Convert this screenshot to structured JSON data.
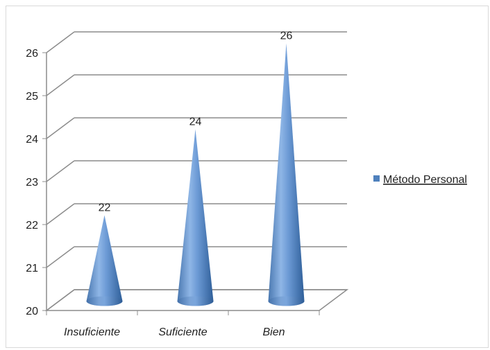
{
  "chart_data": {
    "type": "bar",
    "style": "3d-cone",
    "categories": [
      "Insuficiente",
      "Suficiente",
      "Bien"
    ],
    "series": [
      {
        "name": "Método Personal",
        "values": [
          22,
          24,
          26
        ],
        "color": "#4f81bd"
      }
    ],
    "ylim": [
      20,
      26
    ],
    "yticks": [
      "20",
      "21",
      "22",
      "23",
      "24",
      "25",
      "26"
    ],
    "data_labels": [
      "22",
      "24",
      "26"
    ],
    "grid": true,
    "legend_position": "right"
  }
}
